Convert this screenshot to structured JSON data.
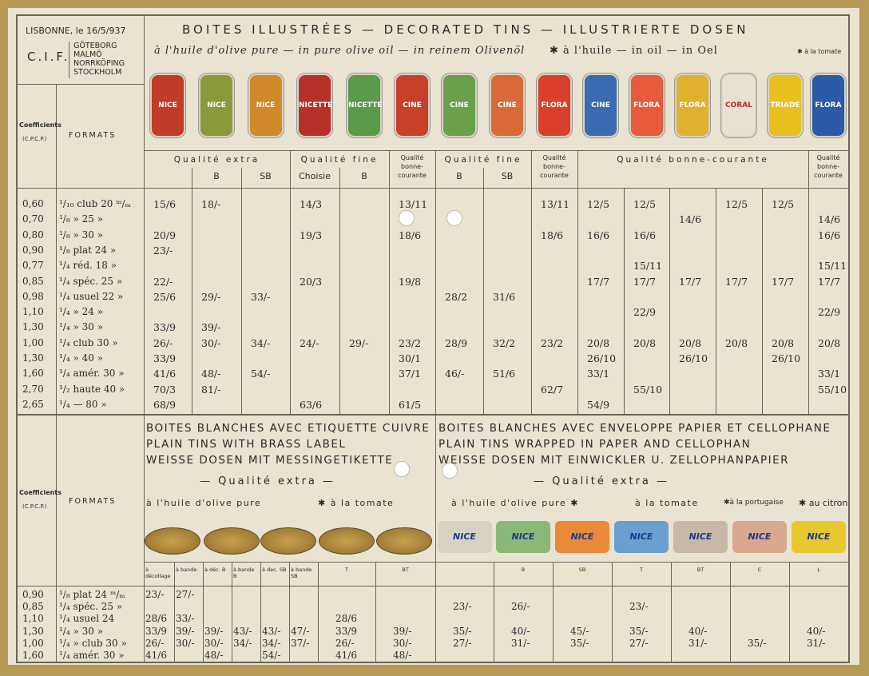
{
  "header": {
    "place_date": "LISBONNE, le 16/5/937",
    "cif": "C.I.F.",
    "cities": [
      "GÖTEBORG",
      "MALMÖ",
      "NORRKÖPING",
      "STOCKHOLM"
    ],
    "title": "BOITES ILLUSTRÉES — DECORATED TINS — ILLUSTRIERTE DOSEN",
    "olive": "à l'huile d'olive pure — in pure olive oil — in reinem Olivenöl",
    "oil": "✱ à l'huile — in oil — in Oel",
    "tomato": "✱ à la tomate"
  },
  "upper": {
    "coef_label": "Coefficients",
    "coef_sub": "(C.P.C.P.)",
    "formats_label": "FORMATS",
    "tins": [
      {
        "label": "NICE",
        "color": "#c23a2a"
      },
      {
        "label": "NICE",
        "color": "#8a9a3a"
      },
      {
        "label": "NICE",
        "color": "#d08a2a"
      },
      {
        "label": "NICETTE",
        "color": "#b8302a"
      },
      {
        "label": "NICETTE",
        "color": "#5a9a4a"
      },
      {
        "label": "CINE",
        "color": "#c8402a"
      },
      {
        "label": "CINE",
        "color": "#6aa04a"
      },
      {
        "label": "CINE",
        "color": "#d86a3a"
      },
      {
        "label": "FLORA",
        "color": "#d8402a"
      },
      {
        "label": "CINE",
        "color": "#3a6ab0"
      },
      {
        "label": "FLORA",
        "color": "#e85a3a"
      },
      {
        "label": "FLORA",
        "color": "#e0b030"
      },
      {
        "label": "CORAL",
        "color": "#e8e0d0"
      },
      {
        "label": "TRIADE",
        "color": "#e8c020"
      },
      {
        "label": "FLORA",
        "color": "#2a5aa8"
      }
    ],
    "groups": [
      {
        "label": "Qualité extra",
        "subs": [
          null,
          "B",
          "SB"
        ]
      },
      {
        "label": "Qualité fine",
        "subs": [
          "Choisie",
          "B"
        ]
      },
      {
        "label": "Qualité bonne-courante",
        "subs": [
          null
        ]
      },
      {
        "label": "Qualité fine",
        "subs": [
          "B",
          "SB"
        ]
      },
      {
        "label": "Qualité bonne-courante",
        "subs": [
          null
        ]
      },
      {
        "label": "Qualité bonne-courante",
        "subs": [
          null,
          null,
          null,
          null,
          null
        ]
      },
      {
        "label": "Qualité bonne-courante",
        "subs": [
          null
        ]
      }
    ],
    "rows": [
      {
        "coef": "0,60",
        "format": "¹/₁₀ club 20 ᵐ/ₘ",
        "cells": [
          "15/6",
          "18/-",
          null,
          "14/3",
          null,
          "13/11",
          null,
          null,
          "13/11",
          "12/5",
          "12/5",
          null,
          "12/5",
          "12/5",
          null
        ]
      },
      {
        "coef": "0,70",
        "format": "¹/₈ » 25 »",
        "cells": [
          null,
          null,
          null,
          null,
          null,
          null,
          null,
          null,
          null,
          null,
          null,
          "14/6",
          null,
          null,
          "14/6"
        ]
      },
      {
        "coef": "0,80",
        "format": "¹/₈ » 30 »",
        "cells": [
          "20/9",
          null,
          null,
          "19/3",
          null,
          "18/6",
          null,
          null,
          "18/6",
          "16/6",
          "16/6",
          null,
          null,
          null,
          "16/6"
        ]
      },
      {
        "coef": "0,90",
        "format": "¹/₈ plat 24 »",
        "cells": [
          "23/-",
          null,
          null,
          null,
          null,
          null,
          null,
          null,
          null,
          null,
          null,
          null,
          null,
          null,
          null
        ]
      },
      {
        "coef": "0,77",
        "format": "¹/₄ réd. 18 »",
        "cells": [
          null,
          null,
          null,
          null,
          null,
          null,
          null,
          null,
          null,
          null,
          "15/11",
          null,
          null,
          null,
          "15/11"
        ]
      },
      {
        "coef": "0,85",
        "format": "¹/₄ spéc. 25 »",
        "cells": [
          "22/-",
          null,
          null,
          "20/3",
          null,
          "19/8",
          null,
          null,
          null,
          "17/7",
          "17/7",
          "17/7",
          "17/7",
          "17/7",
          "17/7"
        ]
      },
      {
        "coef": "0,98",
        "format": "¹/₄ usuel 22 »",
        "cells": [
          "25/6",
          "29/-",
          "33/-",
          null,
          null,
          null,
          "28/2",
          "31/6",
          null,
          null,
          null,
          null,
          null,
          null,
          null
        ]
      },
      {
        "coef": "1,10",
        "format": "¹/₄ » 24 »",
        "cells": [
          null,
          null,
          null,
          null,
          null,
          null,
          null,
          null,
          null,
          null,
          "22/9",
          null,
          null,
          null,
          "22/9"
        ]
      },
      {
        "coef": "1,30",
        "format": "¹/₄ » 30 »",
        "cells": [
          "33/9",
          "39/-",
          null,
          null,
          null,
          null,
          null,
          null,
          null,
          null,
          null,
          null,
          null,
          null,
          null
        ]
      },
      {
        "coef": "1,00",
        "format": "¹/₄ club 30 »",
        "cells": [
          "26/-",
          "30/-",
          "34/-",
          "24/-",
          "29/-",
          "23/2",
          "28/9",
          "32/2",
          "23/2",
          "20/8",
          "20/8",
          "20/8",
          "20/8",
          "20/8",
          "20/8"
        ]
      },
      {
        "coef": "1,30",
        "format": "¹/₄ » 40 »",
        "cells": [
          "33/9",
          null,
          null,
          null,
          null,
          "30/1",
          null,
          null,
          null,
          "26/10",
          null,
          "26/10",
          null,
          "26/10",
          null
        ]
      },
      {
        "coef": "1,60",
        "format": "¹/₄ amér. 30 »",
        "cells": [
          "41/6",
          "48/-",
          "54/-",
          null,
          null,
          "37/1",
          "46/-",
          "51/6",
          null,
          "33/1",
          null,
          null,
          null,
          null,
          "33/1"
        ]
      },
      {
        "coef": "2,70",
        "format": "¹/₂ haute 40 »",
        "cells": [
          "70/3",
          "81/-",
          null,
          null,
          null,
          null,
          null,
          null,
          "62/7",
          null,
          "55/10",
          null,
          null,
          null,
          "55/10"
        ]
      },
      {
        "coef": "2,65",
        "format": "¹/₄ — 80 »",
        "cells": [
          "68/9",
          null,
          null,
          "63/6",
          null,
          "61/5",
          null,
          null,
          null,
          "54/9",
          null,
          null,
          null,
          null,
          null
        ]
      }
    ]
  },
  "lower": {
    "coef_label": "Coefficients",
    "coef_sub": "(C.P.C.P.)",
    "formats_label": "FORMATS",
    "left": {
      "lines": [
        "BOITES BLANCHES AVEC ETIQUETTE CUIVRE",
        "PLAIN TINS WITH BRASS LABEL",
        "WEISSE DOSEN MIT MESSINGETIKETTE"
      ],
      "quality": "— Qualité extra —",
      "olive": "à l'huile d'olive pure",
      "tomato": "✱ à la tomate"
    },
    "right": {
      "lines": [
        "BOITES BLANCHES AVEC ENVELOPPE PAPIER ET CELLOPHANE",
        "PLAIN TINS WRAPPED IN PAPER AND CELLOPHAN",
        "WEISSE DOSEN MIT EINWICKLER U. ZELLOPHANPAPIER"
      ],
      "quality": "— Qualité extra —",
      "olive": "à l'huile d'olive pure ✱",
      "tomato": "à la tomate",
      "portugaise": "✱à la portugaise",
      "citron": "✱ au citron",
      "labels": [
        {
          "label": "NICE",
          "color": "#d8d2c4"
        },
        {
          "label": "NICE",
          "color": "#8ab878"
        },
        {
          "label": "NICE",
          "color": "#e88a3a"
        },
        {
          "label": "NICE",
          "color": "#6aa0d0"
        },
        {
          "label": "NICE",
          "color": "#c8b8a8"
        },
        {
          "label": "NICE",
          "color": "#d8a890"
        },
        {
          "label": "NICE",
          "color": "#e8c830"
        }
      ]
    },
    "columns": [
      "à décollage",
      "à bande",
      "à déc. B",
      "à bande B",
      "à dec. SB",
      "à bande SB",
      "T",
      "BT",
      null,
      "B",
      "SB",
      "T",
      "BT",
      "C",
      "L"
    ],
    "rows": [
      {
        "coef": "0,90",
        "format": "¹/₈ plat 24 ᵐ/ₘ",
        "cells": [
          "23/-",
          "27/-",
          null,
          null,
          null,
          null,
          null,
          null,
          null,
          null,
          null,
          null,
          null,
          null,
          null
        ]
      },
      {
        "coef": "0,85",
        "format": "¹/₄ spéc. 25 »",
        "cells": [
          null,
          null,
          null,
          null,
          null,
          null,
          null,
          null,
          "23/-",
          "26/-",
          null,
          "23/-",
          null,
          null,
          null
        ]
      },
      {
        "coef": "1,10",
        "format": "¹/₄ usuel 24",
        "cells": [
          "28/6",
          "33/-",
          null,
          null,
          null,
          null,
          "28/6",
          null,
          null,
          null,
          null,
          null,
          null,
          null,
          null
        ]
      },
      {
        "coef": "1,30",
        "format": "¹/₄ » 30 »",
        "cells": [
          "33/9",
          "39/-",
          "39/-",
          "43/-",
          "43/-",
          "47/-",
          "33/9",
          "39/-",
          "35/-",
          "40/-",
          "45/-",
          "35/-",
          "40/-",
          null,
          "40/-"
        ]
      },
      {
        "coef": "1,00",
        "format": "¹/₄ » club 30 »",
        "cells": [
          "26/-",
          "30/-",
          "30/-",
          "34/-",
          "34/-",
          "37/-",
          "26/-",
          "30/-",
          "27/-",
          "31/-",
          "35/-",
          "27/-",
          "31/-",
          "35/-",
          "31/-"
        ]
      },
      {
        "coef": "1,60",
        "format": "¹/₄ amér. 30 »",
        "cells": [
          "41/6",
          null,
          "48/-",
          null,
          "54/-",
          null,
          "41/6",
          "48/-",
          null,
          null,
          null,
          null,
          null,
          null,
          null
        ]
      }
    ]
  }
}
